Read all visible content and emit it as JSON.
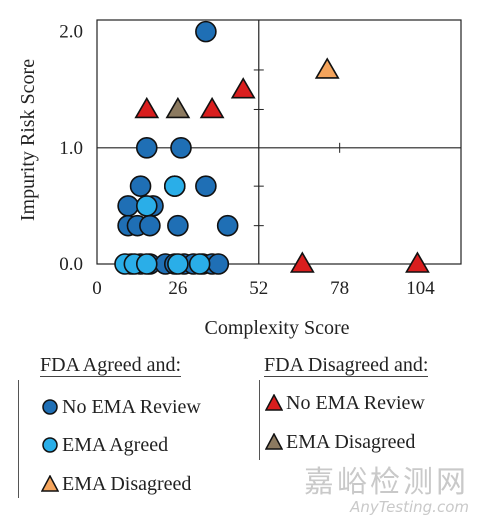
{
  "chart_data": {
    "type": "scatter",
    "xlabel": "Complexity Score",
    "ylabel": "Impurity Risk Score",
    "xlim": [
      0,
      117
    ],
    "ylim": [
      0,
      2.1
    ],
    "x_ticks": [
      {
        "value": 0,
        "label": "0"
      },
      {
        "value": 26,
        "label": "26"
      },
      {
        "value": 52,
        "label": "52"
      },
      {
        "value": 78,
        "label": "78"
      },
      {
        "value": 104,
        "label": "104"
      }
    ],
    "y_ticks": [
      {
        "value": 0,
        "label": "0.0"
      },
      {
        "value": 1,
        "label": "1.0"
      },
      {
        "value": 2,
        "label": "2.0"
      }
    ],
    "reference_lines": {
      "x": 52,
      "y": 1.0
    },
    "series": [
      {
        "name": "No EMA Review",
        "group": "FDA Agreed and:",
        "marker": "circle",
        "color": "#1f6fb5",
        "points": [
          {
            "x": 35,
            "y": 2.0
          },
          {
            "x": 16,
            "y": 1.0
          },
          {
            "x": 27,
            "y": 1.0
          },
          {
            "x": 14,
            "y": 0.67
          },
          {
            "x": 25,
            "y": 0.67
          },
          {
            "x": 35,
            "y": 0.67
          },
          {
            "x": 10,
            "y": 0.5
          },
          {
            "x": 18,
            "y": 0.5
          },
          {
            "x": 10,
            "y": 0.33
          },
          {
            "x": 13,
            "y": 0.33
          },
          {
            "x": 17,
            "y": 0.33
          },
          {
            "x": 26,
            "y": 0.33
          },
          {
            "x": 42,
            "y": 0.33
          },
          {
            "x": 11,
            "y": 0.0
          },
          {
            "x": 14,
            "y": 0.0
          },
          {
            "x": 17,
            "y": 0.0
          },
          {
            "x": 22,
            "y": 0.0
          },
          {
            "x": 25,
            "y": 0.0
          },
          {
            "x": 28,
            "y": 0.0
          },
          {
            "x": 31,
            "y": 0.0
          },
          {
            "x": 34,
            "y": 0.0
          },
          {
            "x": 37,
            "y": 0.0
          },
          {
            "x": 39,
            "y": 0.0
          }
        ]
      },
      {
        "name": "EMA Agreed",
        "group": "FDA Agreed and:",
        "marker": "circle",
        "color": "#2aaee8",
        "points": [
          {
            "x": 25,
            "y": 0.67
          },
          {
            "x": 16,
            "y": 0.5
          },
          {
            "x": 9,
            "y": 0.0
          },
          {
            "x": 12,
            "y": 0.0
          },
          {
            "x": 16,
            "y": 0.0
          },
          {
            "x": 26,
            "y": 0.0
          },
          {
            "x": 33,
            "y": 0.0
          }
        ]
      },
      {
        "name": "EMA Disagreed",
        "group": "FDA Agreed and:",
        "marker": "triangle",
        "color": "#f4a45c",
        "points": [
          {
            "x": 74,
            "y": 1.67
          }
        ]
      },
      {
        "name": "No EMA Review",
        "group": "FDA Disagreed and:",
        "marker": "triangle",
        "color": "#d91e1e",
        "points": [
          {
            "x": 16,
            "y": 1.33
          },
          {
            "x": 37,
            "y": 1.33
          },
          {
            "x": 47,
            "y": 1.5
          },
          {
            "x": 66,
            "y": 0.0
          },
          {
            "x": 103,
            "y": 0.0
          }
        ]
      },
      {
        "name": "EMA Disagreed",
        "group": "FDA Disagreed and:",
        "marker": "triangle",
        "color": "#8c7a60",
        "points": [
          {
            "x": 26,
            "y": 1.33
          }
        ]
      }
    ]
  },
  "legend": {
    "groups": [
      {
        "title": "FDA Agreed and:",
        "items": [
          {
            "label": "No EMA Review",
            "marker": "circle",
            "color": "#1f6fb5"
          },
          {
            "label": "EMA Agreed",
            "marker": "circle",
            "color": "#2aaee8"
          },
          {
            "label": "EMA Disagreed",
            "marker": "triangle",
            "color": "#f4a45c"
          }
        ]
      },
      {
        "title": "FDA Disagreed and:",
        "items": [
          {
            "label": "No EMA Review",
            "marker": "triangle",
            "color": "#d91e1e"
          },
          {
            "label": "EMA Disagreed",
            "marker": "triangle",
            "color": "#8c7a60"
          }
        ]
      }
    ]
  },
  "watermark": {
    "line1": "嘉峪检测网",
    "line2": "AnyTesting.com"
  }
}
